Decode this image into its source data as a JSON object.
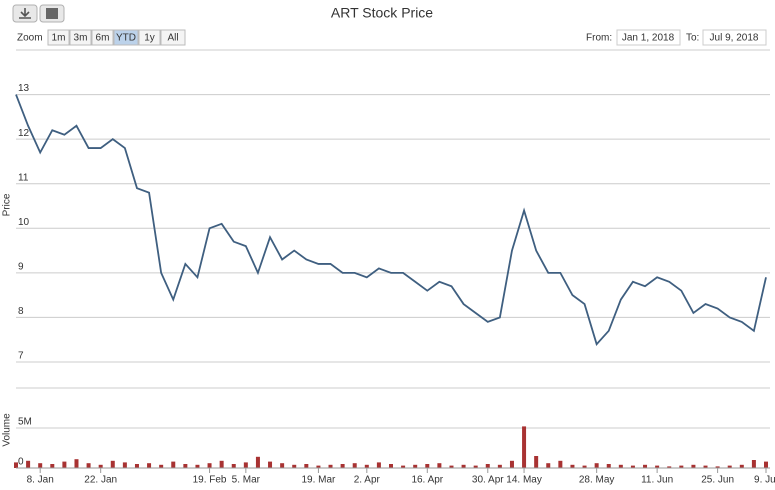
{
  "title": "ART Stock Price",
  "zoom_label": "Zoom",
  "zoom_buttons": [
    {
      "label": "1m"
    },
    {
      "label": "3m"
    },
    {
      "label": "6m"
    },
    {
      "label": "YTD",
      "selected": true
    },
    {
      "label": "1y"
    },
    {
      "label": "All"
    }
  ],
  "from_label": "From:",
  "from_date": "Jan 1, 2018",
  "to_label": "To:",
  "to_date": "Jul 9, 2018",
  "chart_data": [
    {
      "type": "line",
      "y_label": "Price",
      "color": "#3f5f80",
      "values": [
        13.0,
        12.3,
        11.7,
        12.2,
        12.1,
        12.3,
        11.8,
        11.8,
        12.0,
        11.8,
        10.9,
        10.8,
        9.0,
        8.4,
        9.2,
        8.9,
        10.0,
        10.1,
        9.7,
        9.6,
        9.0,
        9.8,
        9.3,
        9.5,
        9.3,
        9.2,
        9.2,
        9.0,
        9.0,
        8.9,
        9.1,
        9.0,
        9.0,
        8.8,
        8.6,
        8.8,
        8.7,
        8.3,
        8.1,
        7.9,
        8.0,
        9.5,
        10.4,
        9.5,
        9.0,
        9.0,
        8.5,
        8.3,
        7.4,
        7.7,
        8.4,
        8.8,
        8.7,
        8.9,
        8.8,
        8.6,
        8.1,
        8.3,
        8.2,
        8.0,
        7.9,
        7.7,
        8.9
      ],
      "ylim": [
        7,
        14
      ],
      "yticks": [
        7,
        8,
        9,
        10,
        11,
        12,
        13
      ],
      "grid": true
    },
    {
      "type": "bar",
      "y_label": "Volume",
      "color": "#a83232",
      "categories": [
        null,
        null,
        "8. Jan",
        null,
        null,
        null,
        null,
        "22. Jan",
        null,
        null,
        null,
        null,
        null,
        null,
        null,
        null,
        "19. Feb",
        null,
        null,
        "5. Mar",
        null,
        null,
        null,
        null,
        null,
        "19. Mar",
        null,
        null,
        null,
        "2. Apr",
        null,
        null,
        null,
        null,
        "16. Apr",
        null,
        null,
        null,
        null,
        "30. Apr",
        null,
        null,
        "14. May",
        null,
        null,
        null,
        null,
        null,
        "28. May",
        null,
        null,
        null,
        null,
        "11. Jun",
        null,
        null,
        null,
        null,
        "25. Jun",
        null,
        null,
        null,
        "9. Jul"
      ],
      "values": [
        700000,
        900000,
        600000,
        500000,
        800000,
        1100000,
        600000,
        400000,
        900000,
        700000,
        500000,
        600000,
        400000,
        800000,
        500000,
        400000,
        600000,
        900000,
        500000,
        700000,
        1400000,
        800000,
        600000,
        400000,
        500000,
        300000,
        400000,
        500000,
        600000,
        400000,
        700000,
        500000,
        300000,
        400000,
        500000,
        600000,
        300000,
        400000,
        300000,
        500000,
        400000,
        900000,
        5200000,
        1500000,
        600000,
        900000,
        400000,
        300000,
        600000,
        500000,
        400000,
        300000,
        400000,
        300000,
        200000,
        300000,
        400000,
        300000,
        200000,
        300000,
        400000,
        1000000,
        800000
      ],
      "ylim": [
        0,
        10000000
      ],
      "yticks": [
        0,
        {
          "value": 5000000,
          "label": "5M"
        }
      ],
      "grid": true
    }
  ]
}
